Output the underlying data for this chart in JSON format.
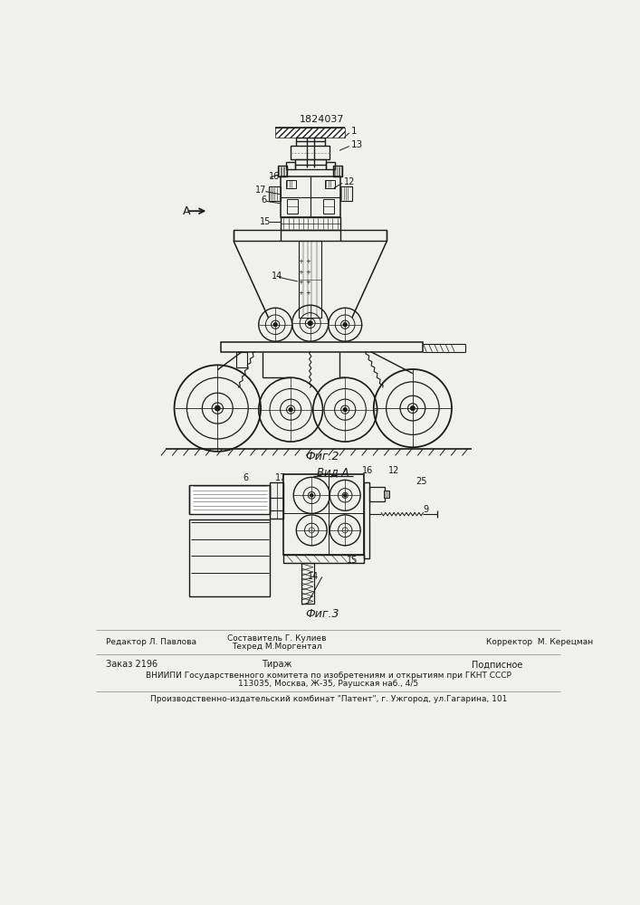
{
  "title_text": "1824037",
  "fig2_label": "Фиг.2",
  "fig3_label": "Фиг.3",
  "vida_label": "Вид А",
  "bg_color": "#f0f0ec",
  "line_color": "#1a1a1a",
  "editor_line": "Редактор Л. Павлова",
  "composer_line": "Составитель Г. Кулиев",
  "techred_line": "Техред М.Моргентал",
  "corrector_line": "Корректор  М. Керецман",
  "order_line": "Заказ 2196",
  "tirazh_line": "Тираж",
  "podpisnoe_line": "Подписное",
  "vniipi_line": "ВНИИПИ Государственного комитета по изобретениям и открытиям при ГКНТ СССР",
  "address_line": "113035, Москва, Ж-35, Раушская наб., 4/5",
  "factory_line": "Производственно-издательский комбинат \"Патент\", г. Ужгород, ул.Гагарина, 101",
  "arrow_label": "А"
}
